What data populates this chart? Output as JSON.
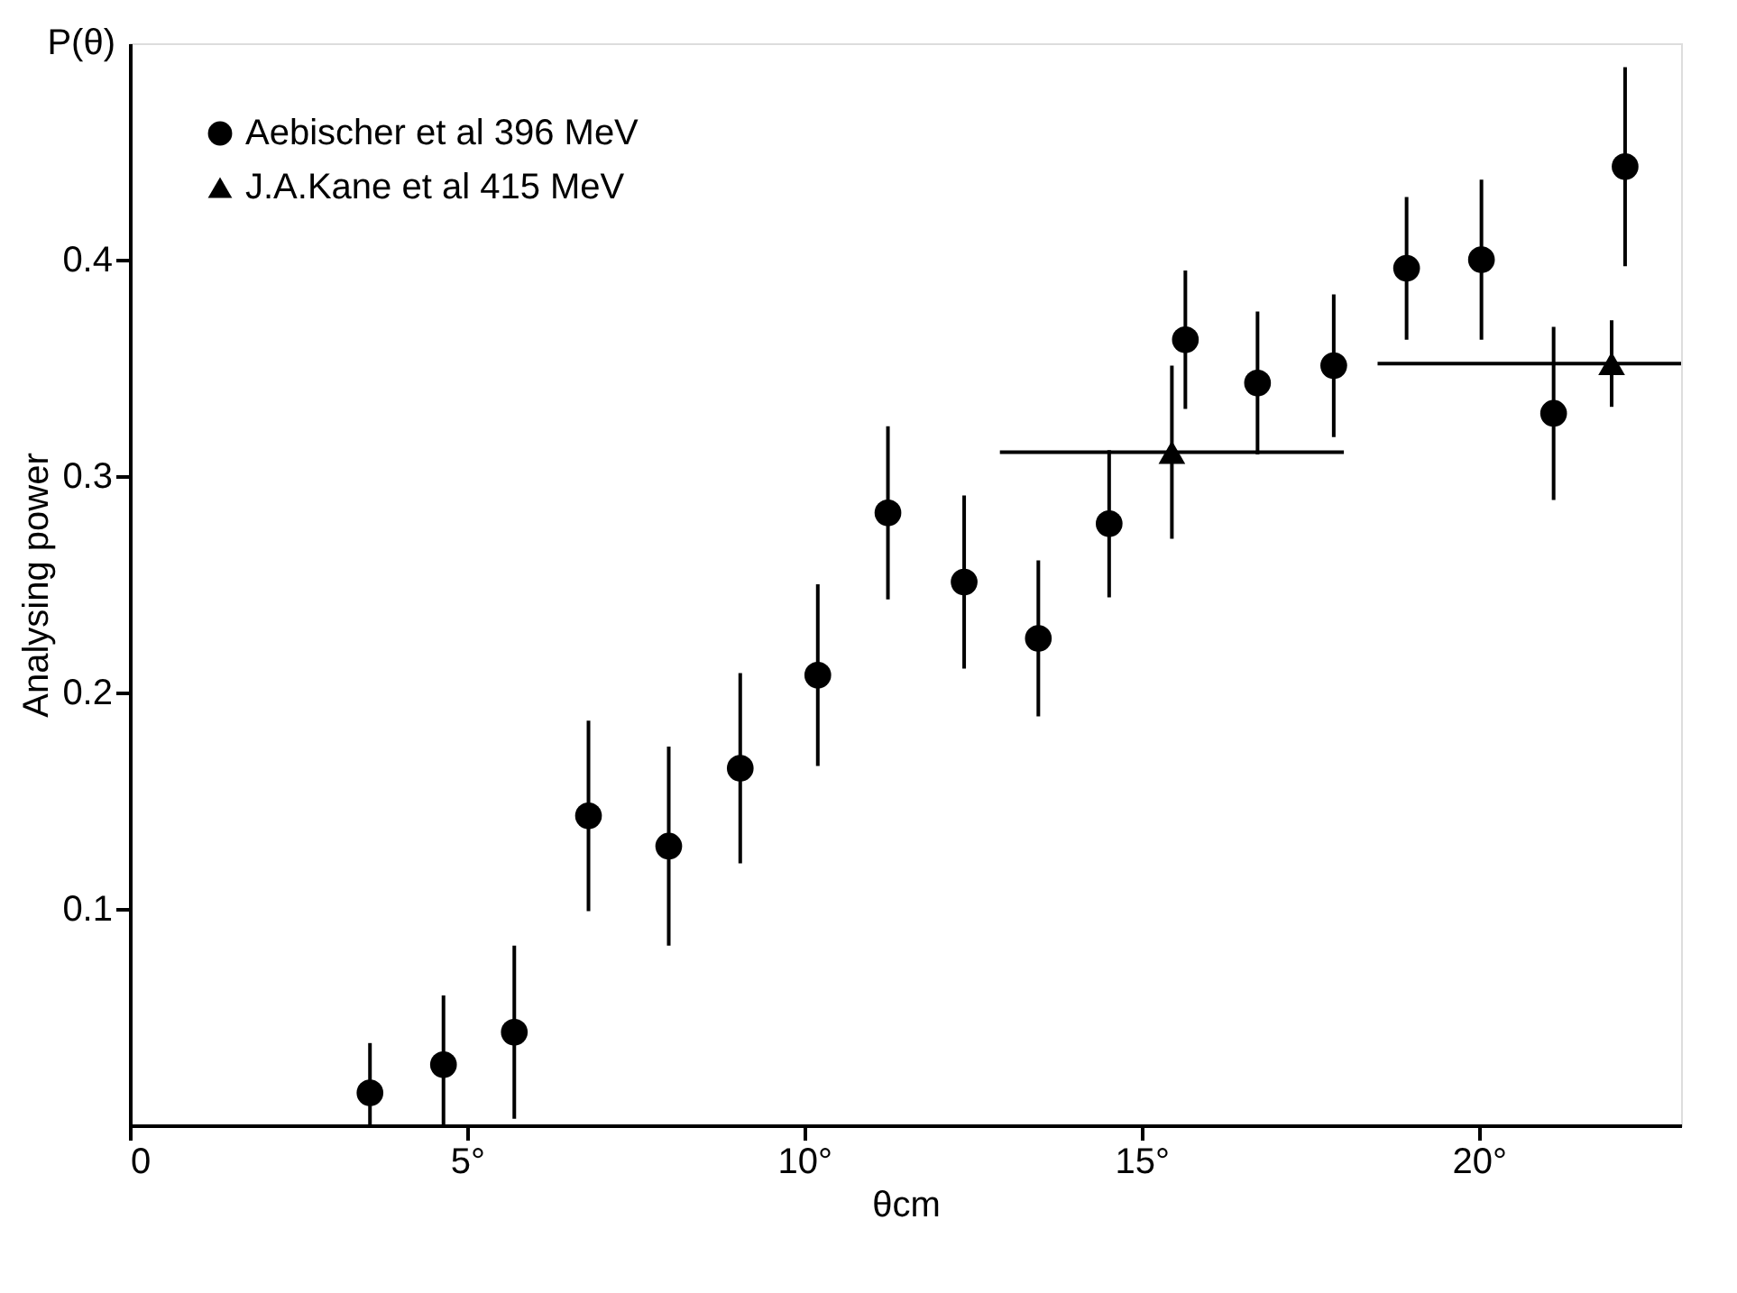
{
  "chart_data": {
    "type": "scatter",
    "xlabel": "θcm",
    "ylabel": "Analysing power",
    "annotations": [
      "P(θ)"
    ],
    "xlim": [
      0,
      23
    ],
    "xticks": [
      0,
      {
        "value": 5,
        "label": "5°"
      },
      {
        "value": 10,
        "label": "10°"
      },
      {
        "value": 15,
        "label": "15°"
      },
      {
        "value": 20,
        "label": "20°"
      }
    ],
    "ylim": [
      0,
      0.5
    ],
    "yticks": [
      0.1,
      0.2,
      0.3,
      0.4
    ],
    "grid": false,
    "legend": "top left",
    "series": [
      {
        "name": "Aebischer et al 396 MeV",
        "color": "#000000",
        "marker": "circle",
        "x": [
          3.56,
          4.65,
          5.7,
          6.8,
          7.99,
          9.05,
          10.2,
          11.24,
          12.37,
          13.47,
          14.52,
          15.65,
          16.72,
          17.85,
          18.93,
          20.04,
          21.11,
          22.17
        ],
        "values": [
          0.015,
          0.028,
          0.043,
          0.143,
          0.129,
          0.165,
          0.208,
          0.283,
          0.251,
          0.225,
          0.278,
          0.363,
          0.343,
          0.351,
          0.396,
          0.4,
          0.329,
          0.443
        ],
        "errors": [
          [
            0,
            0.038
          ],
          [
            0,
            0.06
          ],
          0.04,
          0.044,
          0.046,
          0.044,
          0.042,
          0.04,
          0.04,
          0.036,
          0.034,
          0.032,
          0.033,
          0.033,
          0.033,
          0.037,
          0.04,
          0.046
        ]
      },
      {
        "name": "J.A.Kane et al 415 MeV",
        "color": "#000000",
        "marker": "triangle",
        "x": [
          15.45,
          21.97
        ],
        "values": [
          0.311,
          0.352
        ],
        "errors": [
          0.04,
          0.02
        ],
        "xerrors": [
          2.55,
          [
            18.5,
            23
          ]
        ]
      }
    ]
  }
}
